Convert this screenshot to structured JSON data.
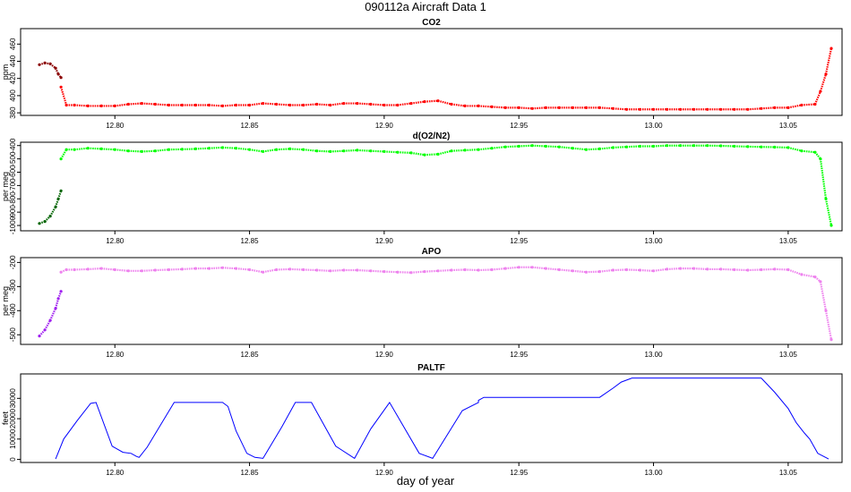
{
  "figure": {
    "title": "090112a   Aircraft Data 1",
    "xlabel": "day of year"
  },
  "chart_data": [
    {
      "type": "scatter",
      "title": "CO2",
      "ylabel": "ppm",
      "xlim": [
        12.765,
        13.07
      ],
      "ylim": [
        377,
        478
      ],
      "xticks": [
        12.8,
        12.85,
        12.9,
        12.95,
        13.0,
        13.05
      ],
      "xtick_labels": [
        "12.80",
        "12.85",
        "12.90",
        "12.95",
        "13.00",
        "13.05"
      ],
      "yticks": [
        380,
        400,
        420,
        440,
        460
      ],
      "ytick_labels": [
        "380",
        "400",
        "420",
        "440",
        "460"
      ],
      "series": [
        {
          "color": "#8B0000",
          "x": [
            12.772,
            12.774,
            12.776,
            12.778,
            12.779,
            12.78
          ],
          "y": [
            436,
            438,
            437,
            432,
            425,
            421
          ]
        },
        {
          "color": "#FF0000",
          "x": [
            12.78,
            12.782,
            12.785,
            12.79,
            12.795,
            12.8,
            12.805,
            12.81,
            12.815,
            12.82,
            12.825,
            12.83,
            12.835,
            12.84,
            12.845,
            12.85,
            12.855,
            12.86,
            12.865,
            12.87,
            12.875,
            12.88,
            12.885,
            12.89,
            12.895,
            12.9,
            12.905,
            12.91,
            12.915,
            12.92,
            12.925,
            12.93,
            12.935,
            12.94,
            12.945,
            12.95,
            12.955,
            12.96,
            12.965,
            12.97,
            12.975,
            12.98,
            12.985,
            12.99,
            12.995,
            13.0,
            13.005,
            13.01,
            13.015,
            13.02,
            13.025,
            13.03,
            13.035,
            13.04,
            13.045,
            13.05,
            13.055,
            13.06,
            13.062,
            13.064,
            13.066
          ],
          "y": [
            410,
            389,
            389,
            388,
            388,
            388,
            390,
            391,
            390,
            389,
            389,
            389,
            389,
            388,
            389,
            389,
            391,
            390,
            389,
            389,
            390,
            389,
            391,
            391,
            390,
            389,
            389,
            391,
            393,
            394,
            390,
            388,
            388,
            387,
            386,
            386,
            385,
            386,
            386,
            386,
            386,
            386,
            385,
            384,
            384,
            384,
            384,
            384,
            384,
            384,
            384,
            384,
            384,
            385,
            386,
            386,
            389,
            390,
            405,
            425,
            455
          ]
        }
      ]
    },
    {
      "type": "scatter",
      "title": "d(O2/N2)",
      "ylabel": "per meg",
      "xlim": [
        12.765,
        13.07
      ],
      "ylim": [
        -1040,
        -375
      ],
      "xticks": [
        12.8,
        12.85,
        12.9,
        12.95,
        13.0,
        13.05
      ],
      "xtick_labels": [
        "12.80",
        "12.85",
        "12.90",
        "12.95",
        "13.00",
        "13.05"
      ],
      "yticks": [
        -1000,
        -900,
        -800,
        -700,
        -600,
        -500,
        -400
      ],
      "ytick_labels": [
        "-1000",
        "-900",
        "-800",
        "-700",
        "-600",
        "-500",
        "-400"
      ],
      "series": [
        {
          "color": "#006400",
          "x": [
            12.772,
            12.774,
            12.776,
            12.778,
            12.779,
            12.78
          ],
          "y": [
            -985,
            -970,
            -930,
            -860,
            -800,
            -740
          ]
        },
        {
          "color": "#00FF00",
          "x": [
            12.78,
            12.782,
            12.785,
            12.79,
            12.795,
            12.8,
            12.805,
            12.81,
            12.815,
            12.82,
            12.825,
            12.83,
            12.835,
            12.84,
            12.845,
            12.85,
            12.855,
            12.86,
            12.865,
            12.87,
            12.875,
            12.88,
            12.885,
            12.89,
            12.895,
            12.9,
            12.905,
            12.91,
            12.915,
            12.92,
            12.925,
            12.93,
            12.935,
            12.94,
            12.945,
            12.95,
            12.955,
            12.96,
            12.965,
            12.97,
            12.975,
            12.98,
            12.985,
            12.99,
            12.995,
            13.0,
            13.005,
            13.01,
            13.015,
            13.02,
            13.025,
            13.03,
            13.035,
            13.04,
            13.045,
            13.05,
            13.055,
            13.06,
            13.062,
            13.064,
            13.066
          ],
          "y": [
            -500,
            -430,
            -430,
            -420,
            -425,
            -430,
            -440,
            -445,
            -440,
            -430,
            -428,
            -425,
            -420,
            -415,
            -420,
            -430,
            -445,
            -430,
            -425,
            -430,
            -440,
            -445,
            -440,
            -435,
            -440,
            -445,
            -450,
            -455,
            -470,
            -465,
            -440,
            -435,
            -430,
            -420,
            -410,
            -405,
            -400,
            -405,
            -410,
            -420,
            -430,
            -425,
            -415,
            -410,
            -405,
            -405,
            -400,
            -400,
            -400,
            -400,
            -402,
            -405,
            -408,
            -410,
            -412,
            -415,
            -440,
            -450,
            -500,
            -800,
            -1000
          ]
        }
      ]
    },
    {
      "type": "scatter",
      "title": "APO",
      "ylabel": "per meg",
      "xlim": [
        12.765,
        13.07
      ],
      "ylim": [
        -540,
        -180
      ],
      "xticks": [
        12.8,
        12.85,
        12.9,
        12.95,
        13.0,
        13.05
      ],
      "xtick_labels": [
        "12.80",
        "12.85",
        "12.90",
        "12.95",
        "13.00",
        "13.05"
      ],
      "yticks": [
        -500,
        -400,
        -300,
        -200
      ],
      "ytick_labels": [
        "-500",
        "-400",
        "-300",
        "-200"
      ],
      "series": [
        {
          "color": "#A020F0",
          "x": [
            12.772,
            12.774,
            12.776,
            12.778,
            12.779,
            12.78
          ],
          "y": [
            -505,
            -480,
            -440,
            -390,
            -350,
            -320
          ]
        },
        {
          "color": "#EE82EE",
          "x": [
            12.78,
            12.782,
            12.785,
            12.79,
            12.795,
            12.8,
            12.805,
            12.81,
            12.815,
            12.82,
            12.825,
            12.83,
            12.835,
            12.84,
            12.845,
            12.85,
            12.855,
            12.86,
            12.865,
            12.87,
            12.875,
            12.88,
            12.885,
            12.89,
            12.895,
            12.9,
            12.905,
            12.91,
            12.915,
            12.92,
            12.925,
            12.93,
            12.935,
            12.94,
            12.945,
            12.95,
            12.955,
            12.96,
            12.965,
            12.97,
            12.975,
            12.98,
            12.985,
            12.99,
            12.995,
            13.0,
            13.005,
            13.01,
            13.015,
            13.02,
            13.025,
            13.03,
            13.035,
            13.04,
            13.045,
            13.05,
            13.055,
            13.06,
            13.062,
            13.064,
            13.066
          ],
          "y": [
            -240,
            -230,
            -230,
            -228,
            -225,
            -230,
            -235,
            -235,
            -232,
            -230,
            -228,
            -225,
            -225,
            -222,
            -225,
            -230,
            -240,
            -230,
            -228,
            -230,
            -232,
            -235,
            -232,
            -232,
            -235,
            -238,
            -240,
            -242,
            -238,
            -235,
            -232,
            -230,
            -232,
            -230,
            -225,
            -220,
            -220,
            -225,
            -230,
            -235,
            -240,
            -238,
            -232,
            -230,
            -232,
            -235,
            -228,
            -225,
            -225,
            -228,
            -228,
            -230,
            -232,
            -230,
            -228,
            -230,
            -250,
            -260,
            -280,
            -400,
            -520
          ]
        }
      ]
    },
    {
      "type": "line",
      "title": "PALTF",
      "ylabel": "feet",
      "xlim": [
        12.765,
        13.07
      ],
      "ylim": [
        -1500,
        42000
      ],
      "xticks": [
        12.8,
        12.85,
        12.9,
        12.95,
        13.0,
        13.05
      ],
      "xtick_labels": [
        "12.80",
        "12.85",
        "12.90",
        "12.95",
        "13.00",
        "13.05"
      ],
      "yticks": [
        0,
        10000,
        20000,
        30000
      ],
      "ytick_labels": [
        "0",
        "10000",
        "20000",
        "30000"
      ],
      "series": [
        {
          "color": "#0000FF",
          "x": [
            12.778,
            12.781,
            12.786,
            12.791,
            12.793,
            12.799,
            12.803,
            12.806,
            12.808,
            12.809,
            12.812,
            12.822,
            12.835,
            12.84,
            12.842,
            12.845,
            12.849,
            12.852,
            12.855,
            12.862,
            12.867,
            12.873,
            12.882,
            12.889,
            12.895,
            12.902,
            12.913,
            12.918,
            12.929,
            12.935,
            12.935,
            12.937,
            12.98,
            12.985,
            12.988,
            12.992,
            13.04,
            13.045,
            13.05,
            13.053,
            13.056,
            13.058,
            13.061,
            13.065
          ],
          "y": [
            200,
            10000,
            19000,
            27500,
            28000,
            6500,
            3500,
            3000,
            1500,
            1000,
            6000,
            28000,
            28000,
            28000,
            26000,
            14000,
            3000,
            1000,
            500,
            16000,
            28000,
            28000,
            6500,
            500,
            15000,
            28000,
            3000,
            500,
            24000,
            28000,
            29000,
            30500,
            30500,
            35000,
            38000,
            40000,
            40000,
            33000,
            25000,
            18000,
            13000,
            10000,
            3000,
            200
          ]
        }
      ]
    }
  ]
}
